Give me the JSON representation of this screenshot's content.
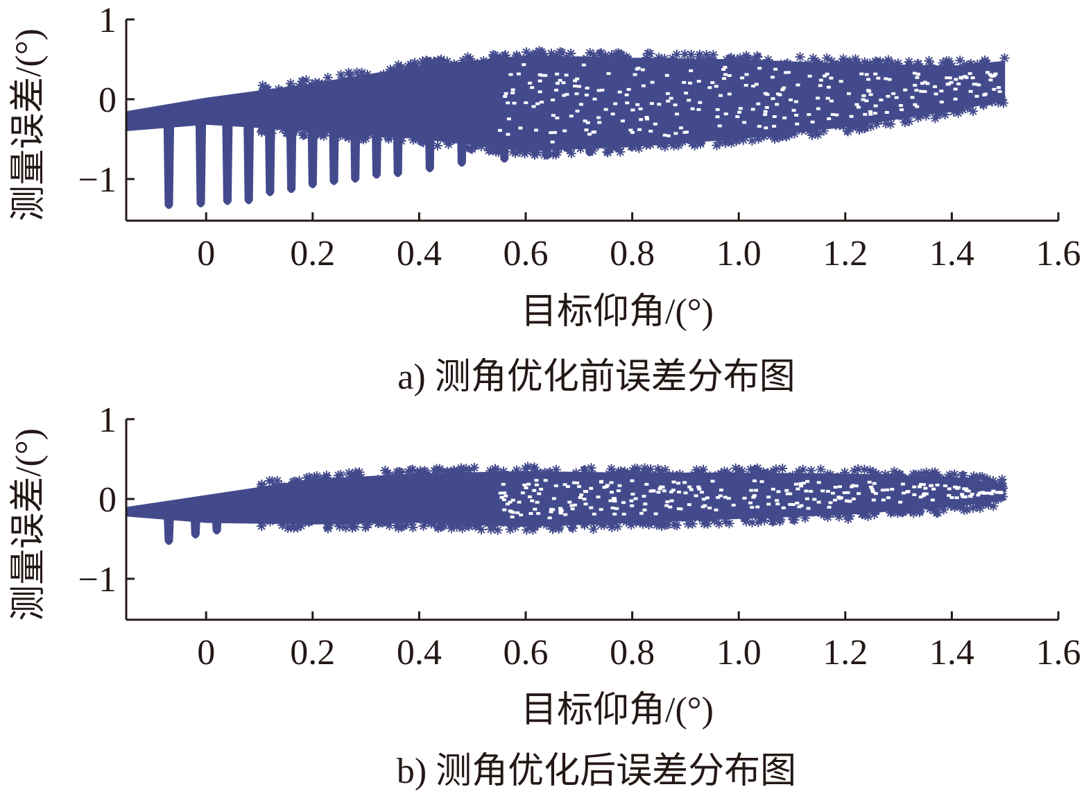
{
  "marker_color": "#434a8c",
  "axis_color": "#231815",
  "chart_data": [
    {
      "type": "scatter",
      "marker": "asterisk",
      "caption": "a) 测角优化前误差分布图",
      "xlabel": "目标仰角/(°)",
      "ylabel": "测量误差/(°)",
      "xlim": [
        -0.15,
        1.6
      ],
      "ylim": [
        -1.5,
        1.0
      ],
      "xticks": [
        0,
        0.2,
        0.4,
        0.6,
        0.8,
        1.0,
        1.2,
        1.4,
        1.6
      ],
      "xtick_labels": [
        "0",
        "0.2",
        "0.4",
        "0.6",
        "0.8",
        "1.0",
        "1.2",
        "1.4",
        "1.6"
      ],
      "yticks": [
        -1,
        0,
        1
      ],
      "ytick_labels": [
        "−1",
        "0",
        "1"
      ],
      "grid": false,
      "band": {
        "x": [
          -0.15,
          0.0,
          0.2,
          0.4,
          0.6,
          0.8,
          1.0,
          1.2,
          1.4,
          1.5
        ],
        "upper": [
          -0.15,
          0.02,
          0.2,
          0.42,
          0.55,
          0.52,
          0.5,
          0.45,
          0.42,
          0.48
        ],
        "lower": [
          -0.4,
          -0.32,
          -0.4,
          -0.5,
          -0.65,
          -0.6,
          -0.5,
          -0.35,
          -0.15,
          -0.02
        ]
      },
      "spikes": [
        {
          "x": -0.07,
          "min": -1.38
        },
        {
          "x": -0.01,
          "min": -1.36
        },
        {
          "x": 0.04,
          "min": -1.33
        },
        {
          "x": 0.08,
          "min": -1.32
        },
        {
          "x": 0.12,
          "min": -1.22
        },
        {
          "x": 0.16,
          "min": -1.18
        },
        {
          "x": 0.2,
          "min": -1.12
        },
        {
          "x": 0.24,
          "min": -1.08
        },
        {
          "x": 0.28,
          "min": -1.05
        },
        {
          "x": 0.32,
          "min": -1.0
        },
        {
          "x": 0.36,
          "min": -0.98
        },
        {
          "x": 0.42,
          "min": -0.92
        },
        {
          "x": 0.48,
          "min": -0.85
        },
        {
          "x": 0.56,
          "min": -0.8
        },
        {
          "x": 0.64,
          "min": -0.76
        },
        {
          "x": 0.72,
          "min": -0.72
        }
      ]
    },
    {
      "type": "scatter",
      "marker": "asterisk",
      "caption": "b) 测角优化后误差分布图",
      "xlabel": "目标仰角/(°)",
      "ylabel": "测量误差/(°)",
      "xlim": [
        -0.15,
        1.6
      ],
      "ylim": [
        -1.5,
        1.0
      ],
      "xticks": [
        0,
        0.2,
        0.4,
        0.6,
        0.8,
        1.0,
        1.2,
        1.4,
        1.6
      ],
      "xtick_labels": [
        "0",
        "0.2",
        "0.4",
        "0.6",
        "0.8",
        "1.0",
        "1.2",
        "1.4",
        "1.6"
      ],
      "yticks": [
        -1,
        0,
        1
      ],
      "ytick_labels": [
        "−1",
        "0",
        "1"
      ],
      "grid": false,
      "band": {
        "x": [
          -0.15,
          0.0,
          0.2,
          0.4,
          0.6,
          0.8,
          1.0,
          1.2,
          1.4,
          1.5
        ],
        "upper": [
          -0.1,
          0.05,
          0.25,
          0.32,
          0.35,
          0.33,
          0.33,
          0.32,
          0.28,
          0.18
        ],
        "lower": [
          -0.22,
          -0.3,
          -0.32,
          -0.3,
          -0.35,
          -0.3,
          -0.25,
          -0.2,
          -0.1,
          -0.02
        ]
      },
      "spikes": [
        {
          "x": -0.07,
          "min": -0.58
        },
        {
          "x": -0.02,
          "min": -0.5
        },
        {
          "x": 0.02,
          "min": -0.45
        }
      ]
    }
  ]
}
